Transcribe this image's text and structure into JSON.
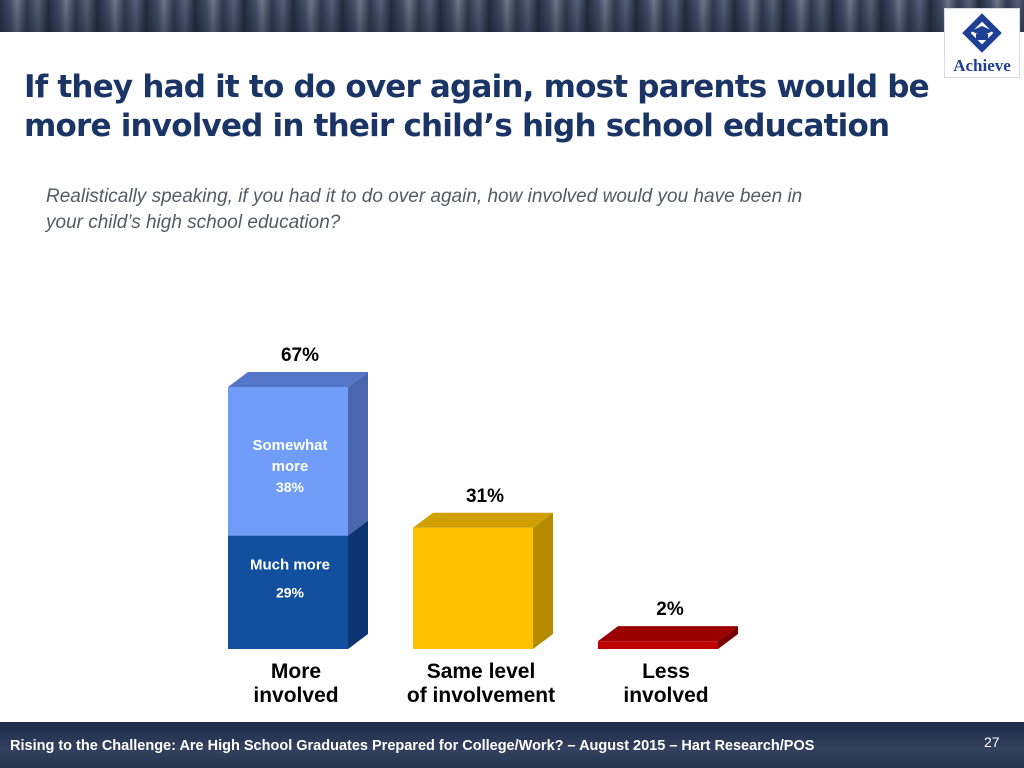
{
  "header": {
    "title_lines": [
      "If they had it to do over again, most parents would be",
      "more involved in their child’s high school education"
    ],
    "question_lines": [
      "Realistically speaking, if you had it to do over again, how involved would you have been in",
      "your child’s high school education?"
    ]
  },
  "logo": {
    "text": "Achieve",
    "icon": "graduation-cap-logo-icon",
    "color": "#1f3f93"
  },
  "chart_data": {
    "type": "bar",
    "stacked": true,
    "style": "3d",
    "categories": [
      {
        "lines": [
          "More",
          "involved"
        ],
        "total": "67%",
        "value": 67
      },
      {
        "lines": [
          "Same level",
          "of involvement"
        ],
        "total": "31%",
        "value": 31
      },
      {
        "lines": [
          "Less",
          "involved"
        ],
        "total": "2%",
        "value": 2
      }
    ],
    "segments": [
      {
        "category": 0,
        "value": 29,
        "label_lines": [
          "Much more"
        ],
        "value_label": "29%",
        "color": "#124f9e",
        "side": "#0b3470",
        "top": "#2a64b4"
      },
      {
        "category": 0,
        "value": 38,
        "label_lines": [
          "Somewhat",
          "more"
        ],
        "value_label": "38%",
        "color": "#6f9df7",
        "side": "#4a66ae",
        "top": "#5576c8"
      },
      {
        "category": 1,
        "value": 31,
        "label_lines": [],
        "value_label": "",
        "color": "#ffc000",
        "side": "#b58c00",
        "top": "#cfa000"
      },
      {
        "category": 2,
        "value": 2,
        "label_lines": [],
        "value_label": "",
        "color": "#c00000",
        "side": "#7a0000",
        "top": "#9a0000"
      }
    ],
    "ylim": [
      0,
      67
    ],
    "grid": false,
    "legend": "none"
  },
  "footer": {
    "text": "Rising to the Challenge:  Are High School Graduates Prepared for College/Work? – August 2015 – Hart Research/POS",
    "page_number": "27"
  }
}
